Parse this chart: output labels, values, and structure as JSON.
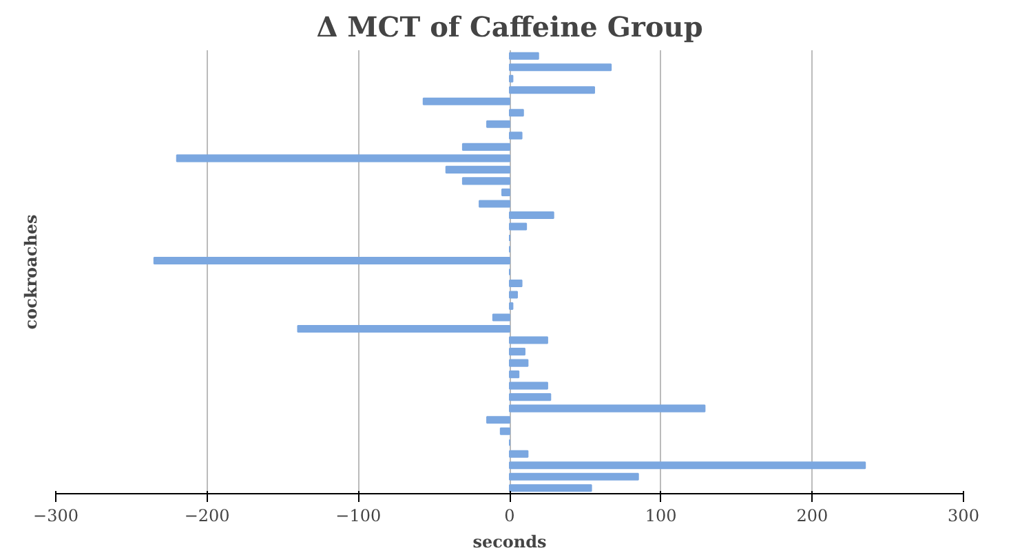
{
  "chart_data": {
    "type": "bar",
    "orientation": "horizontal",
    "title": "Δ MCT of Caffeine Group",
    "xlabel": "seconds",
    "ylabel": "cockroaches",
    "categories": [
      null,
      null,
      null,
      null,
      null,
      null,
      null,
      null,
      null,
      null,
      null,
      null,
      null,
      null,
      null,
      null,
      null,
      null,
      null,
      null,
      null,
      null,
      null,
      null,
      null,
      null,
      null,
      null,
      null,
      null,
      null,
      null,
      null,
      null,
      null,
      null,
      null,
      null,
      null
    ],
    "values": [
      19,
      67,
      2,
      56,
      -57,
      9,
      -15,
      8,
      -31,
      -220,
      -42,
      -31,
      -5,
      -20,
      29,
      11,
      0,
      0,
      -235,
      0,
      8,
      5,
      2,
      -11,
      -140,
      25,
      10,
      12,
      6,
      25,
      27,
      129,
      -15,
      -6,
      0,
      12,
      235,
      85,
      54
    ],
    "color": "#7ba7e0",
    "xlim": [
      -300,
      300
    ],
    "xticks": [
      -300,
      -200,
      -100,
      0,
      100,
      200,
      300
    ],
    "grid": "x",
    "tick_labels": "x"
  }
}
